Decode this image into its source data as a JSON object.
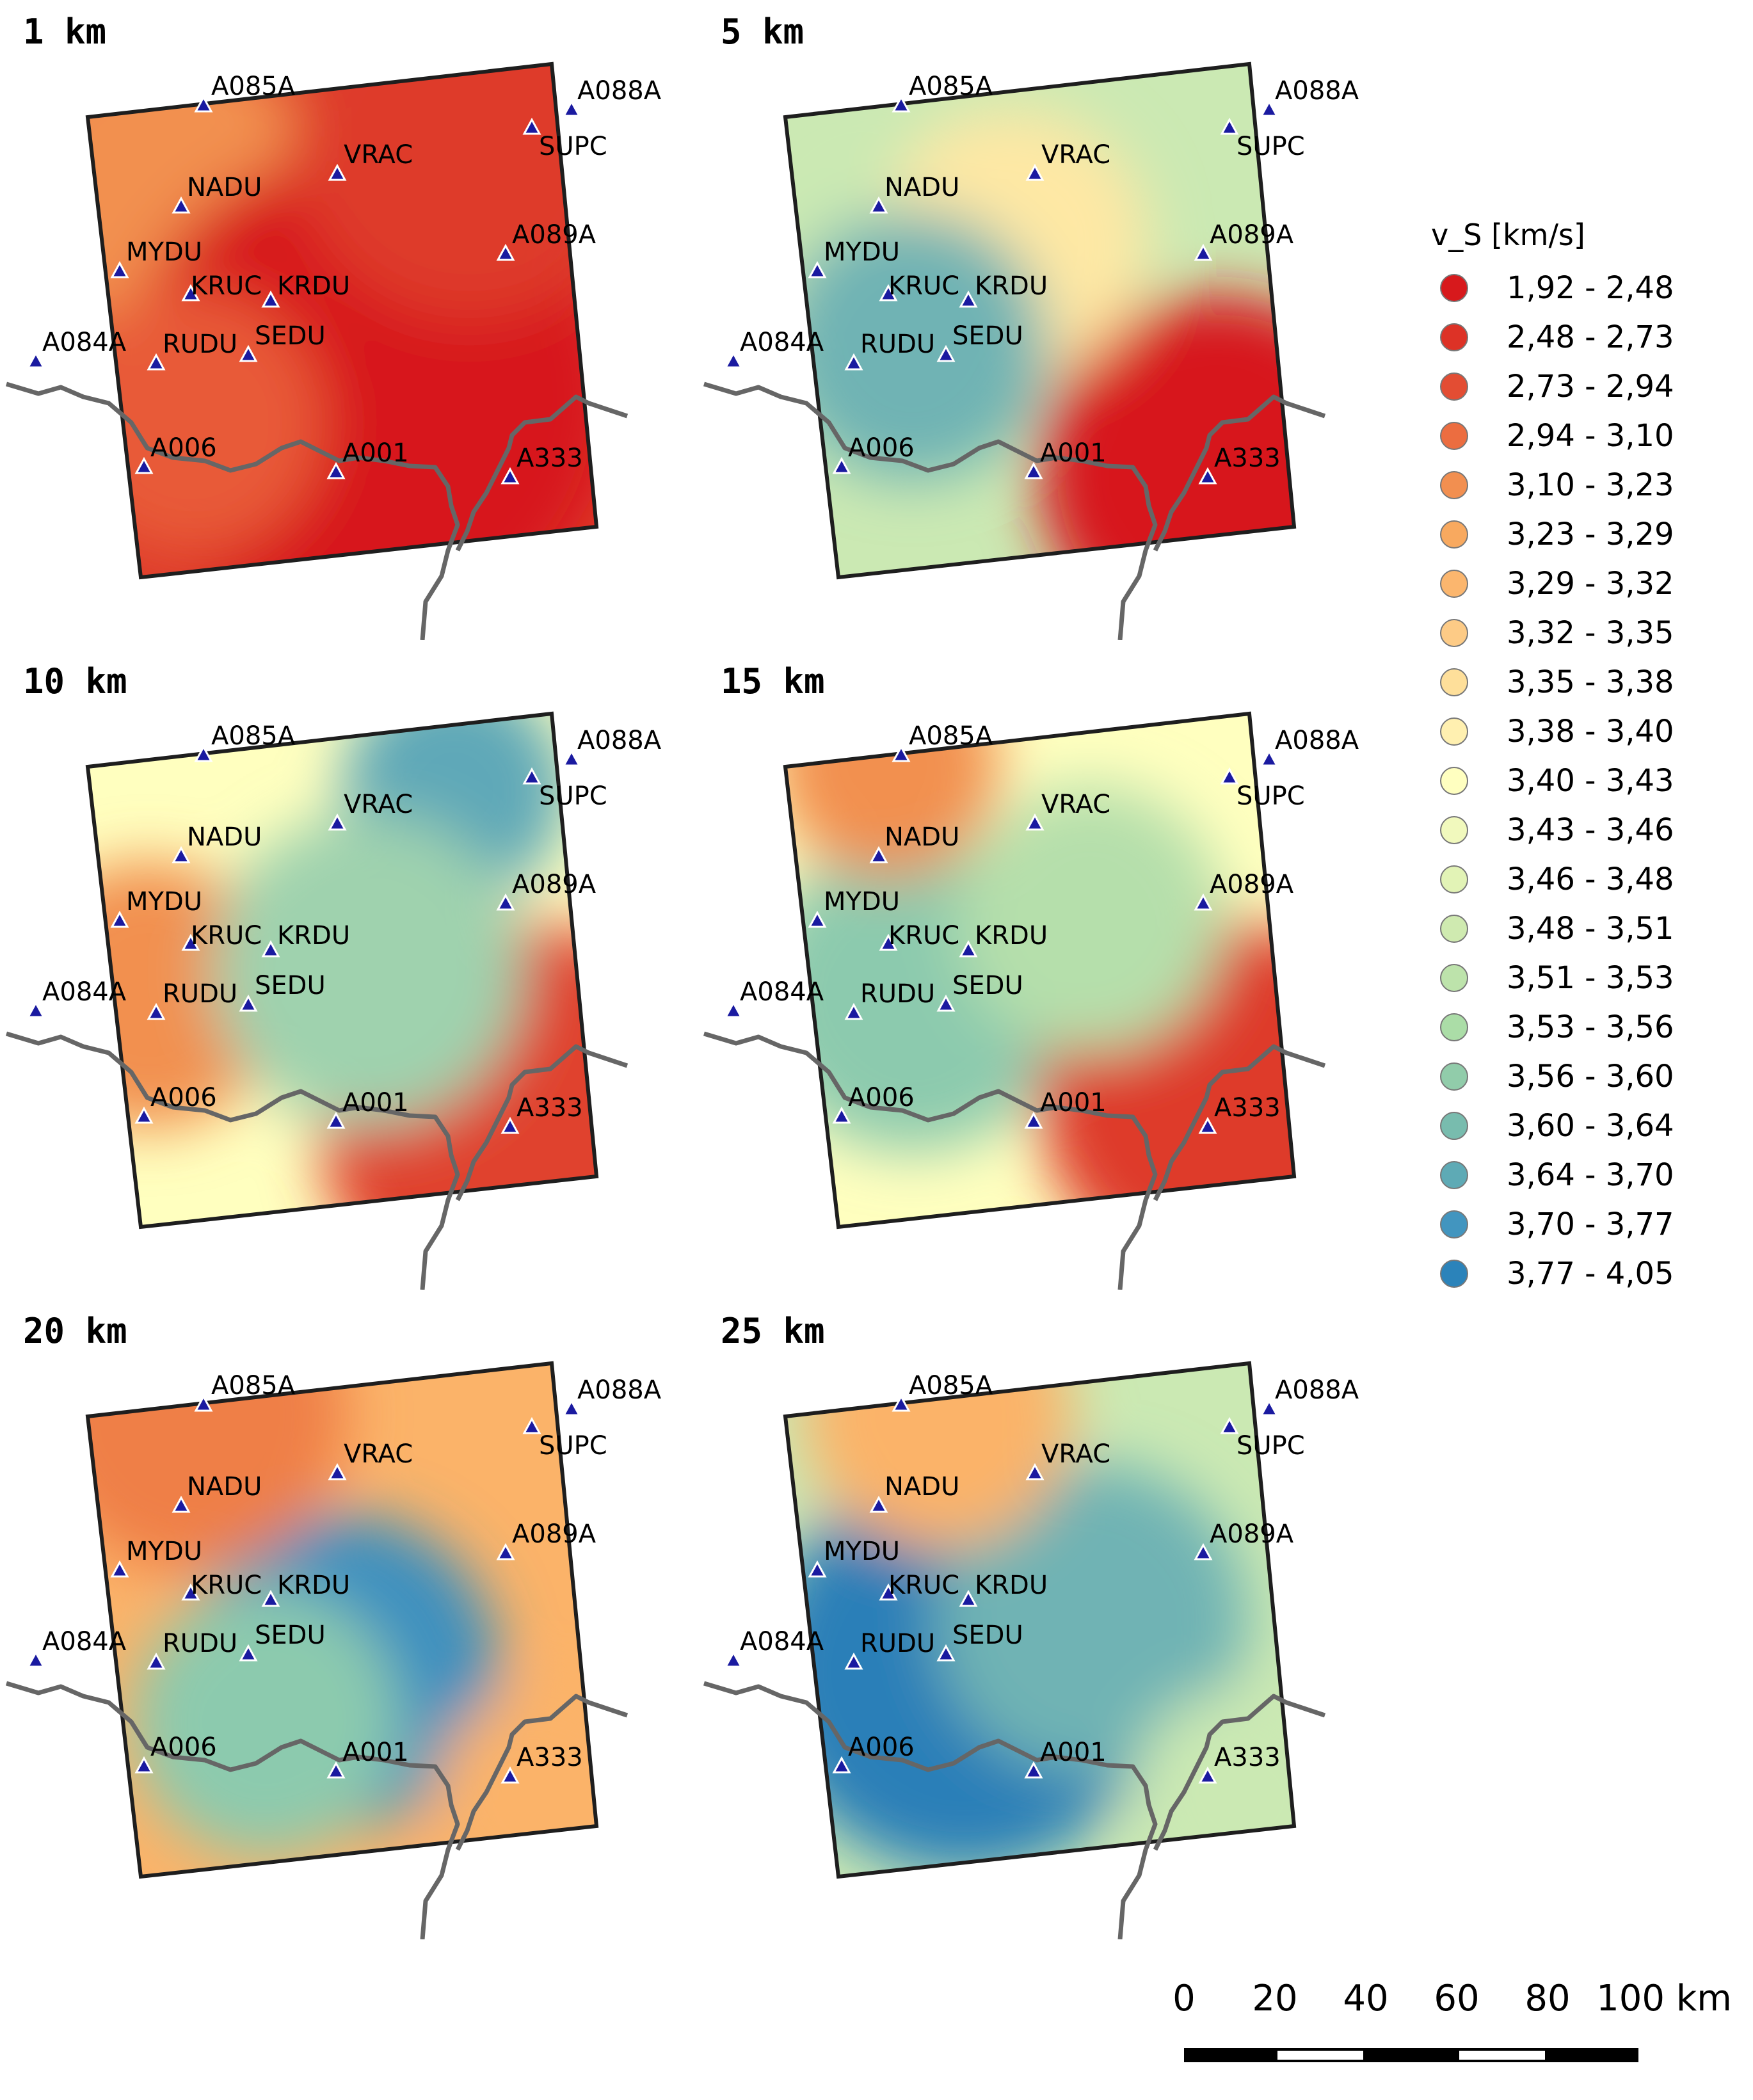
{
  "panels": [
    {
      "title": "1 km",
      "palette": [
        "#d7191c",
        "#de3a2a",
        "#e85a38",
        "#f29050",
        "#fcc27a"
      ]
    },
    {
      "title": "5 km",
      "palette": [
        "#d7191c",
        "#ef7f47",
        "#fee8a4",
        "#cbe9b3",
        "#6fb3b4"
      ]
    },
    {
      "title": "10 km",
      "palette": [
        "#e0432f",
        "#f29050",
        "#ffffbf",
        "#9fd2ae",
        "#5fa8b8"
      ]
    },
    {
      "title": "15 km",
      "palette": [
        "#de3a2a",
        "#f29050",
        "#ffffbf",
        "#b5dfab",
        "#8ccaae"
      ]
    },
    {
      "title": "20 km",
      "palette": [
        "#ef7f47",
        "#fbb369",
        "#f5f9c0",
        "#8ccaae",
        "#3d90bf"
      ]
    },
    {
      "title": "25 km",
      "palette": [
        "#fbb369",
        "#fee8a4",
        "#cbe9b3",
        "#6fb3b4",
        "#2c7fb8"
      ]
    }
  ],
  "stations": {
    "A085A": "A085A",
    "A088A": "A088A",
    "VRAC": "VRAC",
    "SUPC": "SUPC",
    "NADU": "NADU",
    "A089A": "A089A",
    "MYDU": "MYDU",
    "KRUC": "KRUC",
    "KRDU": "KRDU",
    "A084A": "A084A",
    "RUDU": "RUDU",
    "SEDU": "SEDU",
    "A006": "A006",
    "A001": "A001",
    "A333": "A333"
  },
  "legend": {
    "title": "v_S [km/s]",
    "classes": [
      {
        "label": "1,92 - 2,48",
        "color": "#d7191c"
      },
      {
        "label": "2,48 - 2,73",
        "color": "#dd3226"
      },
      {
        "label": "2,73 - 2,94",
        "color": "#e34d33"
      },
      {
        "label": "2,94 - 3,10",
        "color": "#ec6d40"
      },
      {
        "label": "3,10 - 3,23",
        "color": "#f28f50"
      },
      {
        "label": "3,23 - 3,29",
        "color": "#f8a95f"
      },
      {
        "label": "3,29 - 3,32",
        "color": "#fbb66e"
      },
      {
        "label": "3,32 - 3,35",
        "color": "#fdcb86"
      },
      {
        "label": "3,35 - 3,38",
        "color": "#fedf9a"
      },
      {
        "label": "3,38 - 3,40",
        "color": "#fff0b0"
      },
      {
        "label": "3,40 - 3,43",
        "color": "#ffffc0"
      },
      {
        "label": "3,43 - 3,46",
        "color": "#f1f9bd"
      },
      {
        "label": "3,46 - 3,48",
        "color": "#e2f3b6"
      },
      {
        "label": "3,48 - 3,51",
        "color": "#cfeab0"
      },
      {
        "label": "3,51 - 3,53",
        "color": "#bde3ab"
      },
      {
        "label": "3,53 - 3,56",
        "color": "#abdda7"
      },
      {
        "label": "3,56 - 3,60",
        "color": "#91ccaa"
      },
      {
        "label": "3,60 - 3,64",
        "color": "#78bcae"
      },
      {
        "label": "3,64 - 3,70",
        "color": "#5eaab5"
      },
      {
        "label": "3,70 - 3,77",
        "color": "#4295bf"
      },
      {
        "label": "3,77 - 4,05",
        "color": "#2b83ba"
      }
    ]
  },
  "scale_bar": {
    "ticks": [
      "0",
      "20",
      "40",
      "60",
      "80",
      "100 km"
    ]
  }
}
